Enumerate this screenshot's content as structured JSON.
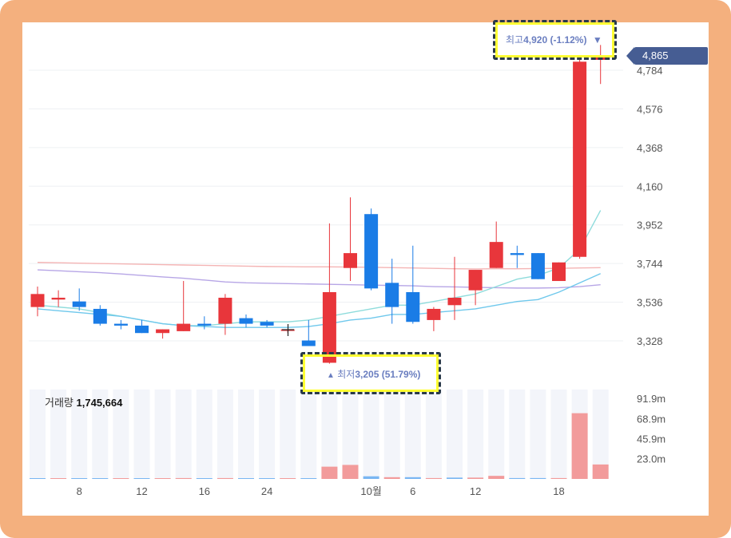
{
  "chart_data": {
    "type": "candlestick",
    "price_axis": {
      "ticks": [
        3328,
        3536,
        3744,
        3952,
        4160,
        4368,
        4576,
        4784
      ],
      "tick_labels": [
        "3,328",
        "3,536",
        "3,744",
        "3,952",
        "4,160",
        "4,368",
        "4,576",
        "4,784"
      ],
      "range": [
        3200,
        4920
      ]
    },
    "x_axis": {
      "tick_labels": [
        "8",
        "12",
        "16",
        "24",
        "10월",
        "6",
        "12",
        "18"
      ]
    },
    "candles": [
      {
        "o": 3510,
        "h": 3620,
        "l": 3460,
        "c": 3580
      },
      {
        "o": 3550,
        "h": 3600,
        "l": 3510,
        "c": 3560
      },
      {
        "o": 3540,
        "h": 3610,
        "l": 3490,
        "c": 3510
      },
      {
        "o": 3500,
        "h": 3520,
        "l": 3410,
        "c": 3420
      },
      {
        "o": 3420,
        "h": 3440,
        "l": 3390,
        "c": 3410
      },
      {
        "o": 3410,
        "h": 3440,
        "l": 3370,
        "c": 3370
      },
      {
        "o": 3370,
        "h": 3390,
        "l": 3340,
        "c": 3390
      },
      {
        "o": 3380,
        "h": 3650,
        "l": 3380,
        "c": 3420
      },
      {
        "o": 3420,
        "h": 3460,
        "l": 3390,
        "c": 3410
      },
      {
        "o": 3420,
        "h": 3580,
        "l": 3360,
        "c": 3560
      },
      {
        "o": 3450,
        "h": 3470,
        "l": 3400,
        "c": 3420
      },
      {
        "o": 3430,
        "h": 3440,
        "l": 3400,
        "c": 3410
      },
      {
        "o": 3390,
        "h": 3390,
        "l": 3370,
        "c": 3390
      },
      {
        "o": 3330,
        "h": 3440,
        "l": 3300,
        "c": 3300
      },
      {
        "o": 3210,
        "h": 3960,
        "l": 3205,
        "c": 3590
      },
      {
        "o": 3720,
        "h": 4100,
        "l": 3650,
        "c": 3800
      },
      {
        "o": 4010,
        "h": 4040,
        "l": 3600,
        "c": 3610
      },
      {
        "o": 3640,
        "h": 3770,
        "l": 3420,
        "c": 3510
      },
      {
        "o": 3590,
        "h": 3840,
        "l": 3420,
        "c": 3430
      },
      {
        "o": 3440,
        "h": 3510,
        "l": 3380,
        "c": 3500
      },
      {
        "o": 3520,
        "h": 3780,
        "l": 3440,
        "c": 3560
      },
      {
        "o": 3600,
        "h": 3700,
        "l": 3520,
        "c": 3710
      },
      {
        "o": 3720,
        "h": 3970,
        "l": 3720,
        "c": 3860
      },
      {
        "o": 3800,
        "h": 3840,
        "l": 3720,
        "c": 3790
      },
      {
        "o": 3800,
        "h": 3800,
        "l": 3660,
        "c": 3660
      },
      {
        "o": 3650,
        "h": 3750,
        "l": 3650,
        "c": 3750
      },
      {
        "o": 3780,
        "h": 4850,
        "l": 3770,
        "c": 4830
      },
      {
        "o": 4840,
        "h": 4920,
        "l": 4710,
        "c": 4865
      }
    ],
    "moving_averages": [
      {
        "color": "#f4b4b4",
        "values": [
          3750,
          3748,
          3746,
          3744,
          3742,
          3740,
          3738,
          3736,
          3734,
          3732,
          3730,
          3728,
          3727,
          3726,
          3726,
          3725,
          3724,
          3722,
          3720,
          3718,
          3716,
          3715,
          3716,
          3716,
          3717,
          3718,
          3720,
          3722
        ]
      },
      {
        "color": "#b7a6e6",
        "values": [
          3710,
          3705,
          3700,
          3695,
          3688,
          3680,
          3672,
          3665,
          3655,
          3645,
          3640,
          3638,
          3636,
          3634,
          3632,
          3630,
          3628,
          3626,
          3624,
          3620,
          3618,
          3616,
          3614,
          3612,
          3612,
          3614,
          3620,
          3630
        ]
      },
      {
        "color": "#8fdcdc",
        "values": [
          3520,
          3510,
          3500,
          3480,
          3460,
          3440,
          3420,
          3410,
          3410,
          3420,
          3430,
          3430,
          3430,
          3440,
          3460,
          3480,
          3500,
          3520,
          3520,
          3540,
          3560,
          3580,
          3620,
          3660,
          3680,
          3720,
          3820,
          4030
        ]
      },
      {
        "color": "#6fc8ec",
        "values": [
          3500,
          3490,
          3480,
          3470,
          3460,
          3440,
          3420,
          3410,
          3405,
          3400,
          3400,
          3400,
          3400,
          3405,
          3420,
          3440,
          3450,
          3470,
          3470,
          3480,
          3490,
          3500,
          3520,
          3540,
          3550,
          3590,
          3640,
          3690
        ]
      }
    ],
    "volume_axis": {
      "tick_labels": [
        "91.9m",
        "68.9m",
        "45.9m",
        "23.0m"
      ],
      "ticks": [
        91.9,
        68.9,
        45.9,
        23.0
      ],
      "range": [
        0,
        102
      ]
    },
    "volume": [
      0,
      0,
      0,
      0,
      0,
      0,
      0,
      0,
      0,
      0,
      0,
      0,
      0,
      0,
      0,
      0,
      0,
      0,
      0,
      0,
      0,
      0,
      0,
      0,
      0,
      0,
      0,
      0
    ],
    "volume_bars": [
      {
        "v": 0.3,
        "up": false
      },
      {
        "v": 0.2,
        "up": true
      },
      {
        "v": 0.2,
        "up": false
      },
      {
        "v": 0.2,
        "up": false
      },
      {
        "v": 0.2,
        "up": true
      },
      {
        "v": 0.2,
        "up": false
      },
      {
        "v": 0.3,
        "up": true
      },
      {
        "v": 1.0,
        "up": true
      },
      {
        "v": 0.3,
        "up": false
      },
      {
        "v": 1.0,
        "up": true
      },
      {
        "v": 0.3,
        "up": false
      },
      {
        "v": 0.2,
        "up": false
      },
      {
        "v": 0.2,
        "up": true
      },
      {
        "v": 0.3,
        "up": false
      },
      {
        "v": 14.0,
        "up": true
      },
      {
        "v": 16.0,
        "up": true
      },
      {
        "v": 3.0,
        "up": false
      },
      {
        "v": 2.0,
        "up": true
      },
      {
        "v": 2.0,
        "up": false
      },
      {
        "v": 1.0,
        "up": true
      },
      {
        "v": 1.5,
        "up": false
      },
      {
        "v": 1.5,
        "up": true
      },
      {
        "v": 3.5,
        "up": true
      },
      {
        "v": 1.0,
        "up": false
      },
      {
        "v": 1.0,
        "up": false
      },
      {
        "v": 1.0,
        "up": true
      },
      {
        "v": 75.0,
        "up": true
      },
      {
        "v": 16.5,
        "up": true
      }
    ]
  },
  "annotations": {
    "high": {
      "label": "최고",
      "value": "4,920 (-1.12%)",
      "arrow": "▼"
    },
    "low": {
      "label": "최저",
      "value": "3,205 (51.79%)",
      "arrow": "▲"
    }
  },
  "volume_header": {
    "label": "거래량",
    "value": "1,745,664"
  },
  "last_price": "4,865",
  "colors": {
    "up": "#e8363b",
    "down": "#1a7ce6",
    "frame": "#f4b07e",
    "price_tag": "#465d93"
  }
}
